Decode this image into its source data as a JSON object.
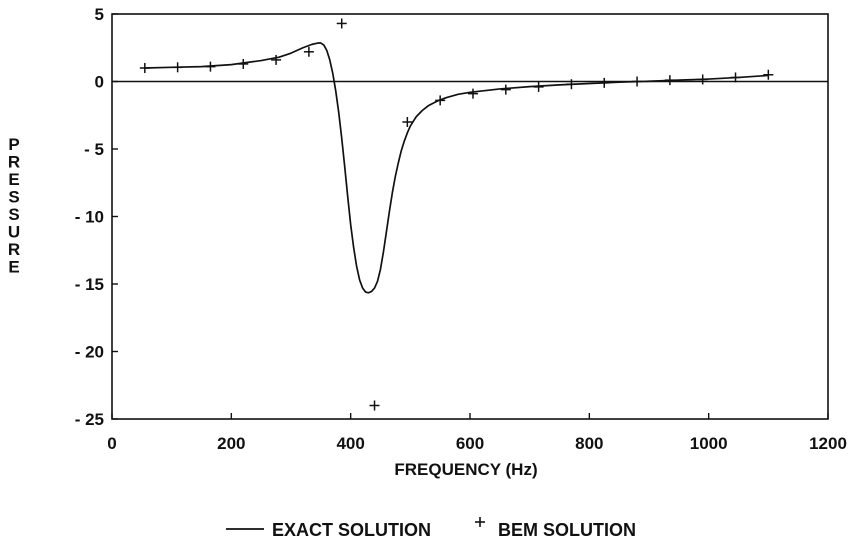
{
  "chart_data": {
    "type": "line",
    "title": "",
    "xlabel": "FREQUENCY (Hz)",
    "ylabel": "PRESSURE",
    "xlim": [
      0,
      1200
    ],
    "ylim": [
      -25,
      5
    ],
    "xticks": [
      0,
      200,
      400,
      600,
      800,
      1000,
      1200
    ],
    "yticks": [
      5,
      0,
      -5,
      -10,
      -15,
      -20,
      -25
    ],
    "grid": false,
    "zero_line": true,
    "legend_position": "bottom",
    "series": [
      {
        "name": "EXACT SOLUTION",
        "style": "line",
        "color": "#111111",
        "x": [
          55,
          100,
          150,
          200,
          250,
          280,
          300,
          320,
          335,
          345,
          350,
          355,
          360,
          365,
          370,
          375,
          380,
          385,
          390,
          395,
          400,
          405,
          410,
          415,
          420,
          425,
          430,
          435,
          440,
          445,
          450,
          455,
          460,
          465,
          470,
          475,
          480,
          485,
          490,
          495,
          500,
          510,
          520,
          530,
          545,
          560,
          580,
          600,
          650,
          700,
          750,
          800,
          850,
          900,
          950,
          1000,
          1050,
          1100
        ],
        "y": [
          1.0,
          1.05,
          1.1,
          1.25,
          1.55,
          1.8,
          2.1,
          2.5,
          2.75,
          2.85,
          2.85,
          2.7,
          2.3,
          1.6,
          0.6,
          -0.7,
          -2.3,
          -4.2,
          -6.3,
          -8.5,
          -10.6,
          -12.3,
          -13.7,
          -14.7,
          -15.3,
          -15.6,
          -15.65,
          -15.55,
          -15.3,
          -14.8,
          -13.9,
          -12.6,
          -11.1,
          -9.6,
          -8.2,
          -7.0,
          -6.0,
          -5.1,
          -4.4,
          -3.8,
          -3.3,
          -2.6,
          -2.15,
          -1.8,
          -1.45,
          -1.2,
          -0.95,
          -0.8,
          -0.55,
          -0.38,
          -0.25,
          -0.15,
          -0.05,
          0.02,
          0.1,
          0.18,
          0.3,
          0.45
        ]
      },
      {
        "name": "BEM SOLUTION",
        "style": "marker",
        "marker": "+",
        "color": "#111111",
        "x": [
          55,
          110,
          165,
          220,
          275,
          330,
          385,
          440,
          495,
          550,
          605,
          660,
          715,
          770,
          825,
          880,
          935,
          990,
          1045,
          1100
        ],
        "y": [
          1.0,
          1.05,
          1.1,
          1.3,
          1.6,
          2.2,
          4.3,
          -24.0,
          -3.0,
          -1.4,
          -0.9,
          -0.6,
          -0.4,
          -0.2,
          -0.1,
          0.0,
          0.1,
          0.15,
          0.3,
          0.5
        ]
      }
    ]
  }
}
